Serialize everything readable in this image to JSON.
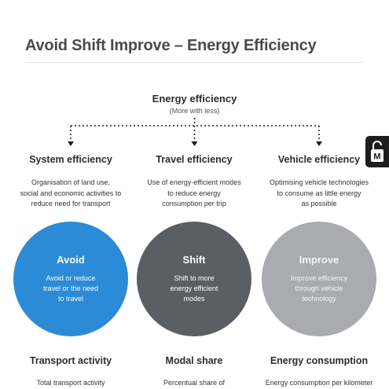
{
  "title": "Avoid Shift Improve – Energy Efficiency",
  "top": {
    "title": "Energy efficiency",
    "subtitle": "(More with less)"
  },
  "columns": [
    {
      "heading": "System efficiency",
      "description": [
        "Organisation of land use,",
        "social and economic activities to",
        "reduce need for transport"
      ],
      "circle_title": "Avoid",
      "circle_text": [
        "Avoid or reduce",
        "travel or the need",
        "to travel"
      ],
      "metric": "Transport activity",
      "metric_desc": "Total transport activity"
    },
    {
      "heading": "Travel efficiency",
      "description": [
        "Use of energy-efficient modes",
        "to reduce energy",
        "consumption per trip"
      ],
      "circle_title": "Shift",
      "circle_text": [
        "Shift to more",
        "energy efficient",
        "modes"
      ],
      "metric": "Modal share",
      "metric_desc": "Percentual share of"
    },
    {
      "heading": "Vehicle efficiency",
      "description": [
        "Optimising vehicle technologies",
        "to consume as little energy",
        "as possible"
      ],
      "circle_title": "Improve",
      "circle_text": [
        "Improve efficiency",
        "through vehicle",
        "technology"
      ],
      "metric": "Energy consumption",
      "metric_desc": "Energy consumption per kilometer"
    }
  ],
  "colors": {
    "avoid": "#2b8bd6",
    "shift": "#5a5f66",
    "improve": "#a9abae"
  },
  "side_badge_icon": "open-lock-m-icon"
}
